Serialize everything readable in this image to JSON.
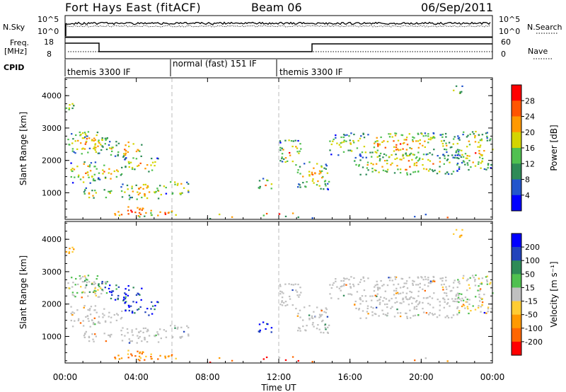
{
  "header": {
    "station": "Fort Hays East (fitACF)",
    "beam": "Beam 06",
    "date": "06/Sep/2011"
  },
  "noise_panel": {
    "left_label": "N.Sky",
    "right_label": "N.Search",
    "left_ticks": [
      "10^5",
      "10^0"
    ],
    "right_ticks": [
      "10^5",
      "10^0"
    ]
  },
  "freq_panel": {
    "left_label_line1": "Freq.",
    "left_label_line2": "[MHz]",
    "left_ticks": [
      "18",
      "8"
    ],
    "right_label": "Nave",
    "right_ticks": [
      "60",
      "0"
    ]
  },
  "cpid": {
    "label": "CPID",
    "segments": [
      {
        "name": "themis 3300 IF",
        "start_h": 0
      },
      {
        "name": "normal (fast) 151 IF",
        "start_h": 6
      },
      {
        "name": "themis 3300 IF",
        "start_h": 12
      }
    ]
  },
  "chart_data": [
    {
      "type": "heatmap",
      "name": "Power",
      "ylabel": "Slant Range [km]",
      "y_ticks": [
        "1000",
        "2000",
        "3000",
        "4000"
      ],
      "ylim": [
        180,
        4550
      ],
      "colorbar_label": "Power [dB]",
      "colorbar_ticks": [
        "4",
        "8",
        "12",
        "16",
        "20",
        "24",
        "28"
      ],
      "colors": [
        "#0000ff",
        "#2255cc",
        "#2e8b57",
        "#50c050",
        "#d4d400",
        "#ff9900",
        "#ff5500",
        "#ff0000"
      ]
    },
    {
      "type": "heatmap",
      "name": "Velocity",
      "ylabel": "Slant Range [km]",
      "y_ticks": [
        "1000",
        "2000",
        "3000",
        "4000"
      ],
      "ylim": [
        180,
        4550
      ],
      "colorbar_label": "Velocity [m s⁻¹]",
      "colorbar_ticks": [
        "200",
        "100",
        "50",
        "15",
        "-15",
        "-50",
        "-100",
        "-200"
      ],
      "colors": [
        "#0000ff",
        "#2244bb",
        "#2e8b57",
        "#50c050",
        "#c0c0c0",
        "#ffcc33",
        "#ff9900",
        "#ff6600",
        "#ff0000"
      ]
    }
  ],
  "x_axis": {
    "ticks": [
      "00:00",
      "04:00",
      "08:00",
      "12:00",
      "16:00",
      "20:00",
      "00:00"
    ],
    "tick_hours": [
      0,
      4,
      8,
      12,
      16,
      20,
      24
    ],
    "label": "Time UT"
  },
  "scatter_regions": [
    {
      "t0": 0.1,
      "t1": 2.4,
      "r0": 2200,
      "r1": 2900,
      "v": "mix"
    },
    {
      "t0": 1.0,
      "t1": 2.3,
      "r0": 2350,
      "r1": 2750,
      "v": "pos_weak"
    },
    {
      "t0": 2.4,
      "t1": 4.4,
      "r0": 2100,
      "r1": 2600,
      "v": "pos"
    },
    {
      "t0": 3.3,
      "t1": 5.2,
      "r0": 1650,
      "r1": 2100,
      "v": "pos"
    },
    {
      "t0": 0.2,
      "t1": 1.8,
      "r0": 1300,
      "r1": 2000,
      "v": "zero"
    },
    {
      "t0": 1.8,
      "t1": 3.2,
      "r0": 1400,
      "r1": 1850,
      "v": "zero"
    },
    {
      "t0": 3.0,
      "t1": 5.5,
      "r0": 800,
      "r1": 1300,
      "v": "zero"
    },
    {
      "t0": 5.5,
      "t1": 7.0,
      "r0": 950,
      "r1": 1350,
      "v": "zero"
    },
    {
      "t0": 1.0,
      "t1": 2.6,
      "r0": 800,
      "r1": 1150,
      "v": "zero"
    },
    {
      "t0": 2.6,
      "t1": 4.8,
      "r0": 250,
      "r1": 600,
      "v": "neg"
    },
    {
      "t0": 4.8,
      "t1": 6.2,
      "r0": 250,
      "r1": 450,
      "v": "neg"
    },
    {
      "t0": 6.2,
      "t1": 23.8,
      "r0": 200,
      "r1": 380,
      "v": "neg_sparse"
    },
    {
      "t0": 0.0,
      "t1": 0.5,
      "r0": 3550,
      "r1": 4000,
      "v": "neg_weak"
    },
    {
      "t0": 12.0,
      "t1": 13.2,
      "r0": 1850,
      "r1": 2650,
      "v": "zero"
    },
    {
      "t0": 13.0,
      "t1": 14.8,
      "r0": 1100,
      "r1": 2000,
      "v": "zero"
    },
    {
      "t0": 10.8,
      "t1": 11.7,
      "r0": 1100,
      "r1": 1450,
      "v": "pos"
    },
    {
      "t0": 14.8,
      "t1": 22.2,
      "r0": 2150,
      "r1": 2850,
      "v": "zero"
    },
    {
      "t0": 16.2,
      "t1": 22.0,
      "r0": 1550,
      "r1": 2200,
      "v": "zero"
    },
    {
      "t0": 22.0,
      "t1": 24.0,
      "r0": 1700,
      "r1": 2900,
      "v": "mix"
    },
    {
      "t0": 21.6,
      "t1": 22.4,
      "r0": 4050,
      "r1": 4300,
      "v": "neg_weak"
    }
  ]
}
